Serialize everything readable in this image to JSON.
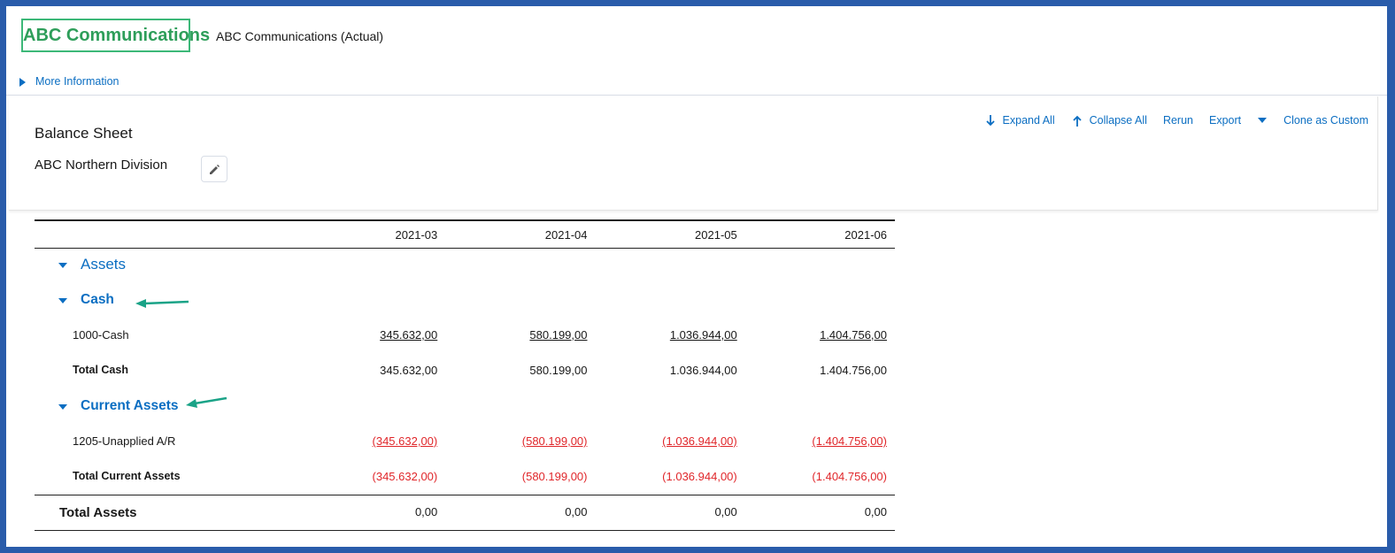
{
  "header": {
    "logo": "ABC Communications",
    "title": "ABC Communications (Actual)",
    "more_info": "More Information"
  },
  "report": {
    "title": "Balance Sheet",
    "subtitle": "ABC Northern Division",
    "actions": [
      "Expand All",
      "Collapse All",
      "Rerun",
      "Export",
      "Clone as Custom"
    ]
  },
  "table": {
    "columns": [
      "2021-03",
      "2021-04",
      "2021-05",
      "2021-06"
    ],
    "rows": [
      {
        "kind": "section",
        "label": "Assets"
      },
      {
        "kind": "group",
        "label": "Cash"
      },
      {
        "kind": "account",
        "label": "1000-Cash",
        "values": [
          "345.632,00",
          "580.199,00",
          "1.036.944,00",
          "1.404.756,00"
        ]
      },
      {
        "kind": "total",
        "label": "Total Cash",
        "values": [
          "345.632,00",
          "580.199,00",
          "1.036.944,00",
          "1.404.756,00"
        ]
      },
      {
        "kind": "group",
        "label": "Current Assets"
      },
      {
        "kind": "account",
        "label": "1205-Unapplied A/R",
        "values": [
          "(345.632,00)",
          "(580.199,00)",
          "(1.036.944,00)",
          "(1.404.756,00)"
        ]
      },
      {
        "kind": "total",
        "label": "Total Current Assets",
        "values": [
          "(345.632,00)",
          "(580.199,00)",
          "(1.036.944,00)",
          "(1.404.756,00)"
        ]
      },
      {
        "kind": "grand",
        "label": "Total Assets",
        "values": [
          "0,00",
          "0,00",
          "0,00",
          "0,00"
        ]
      }
    ]
  }
}
